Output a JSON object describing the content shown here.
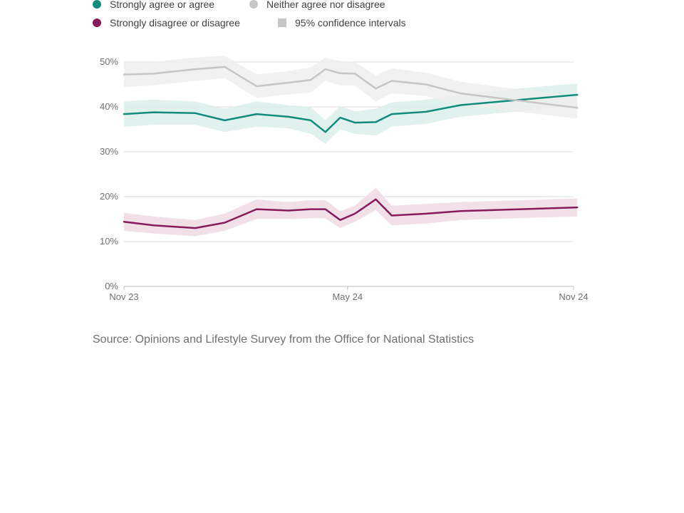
{
  "legend": [
    {
      "label": "Strongly agree or agree",
      "color": "#118c7b",
      "shape": "circle"
    },
    {
      "label": "Neither agree nor disagree",
      "color": "#c6c6c6",
      "shape": "circle"
    },
    {
      "label": "Strongly disagree or disagree",
      "color": "#871a5b",
      "shape": "circle"
    },
    {
      "label": "95% confidence intervals",
      "color": "#c6c6c6",
      "shape": "square"
    }
  ],
  "source": "Source: Opinions and Lifestyle Survey from the Office for National Statistics",
  "chart_data": {
    "type": "line",
    "title": "",
    "xlabel": "",
    "ylabel": "",
    "ylim": [
      0,
      50
    ],
    "x_ticks": [
      {
        "label": "Nov 23",
        "date": "2023-11-01"
      },
      {
        "label": "May 24",
        "date": "2024-05-01"
      },
      {
        "label": "Nov 24",
        "date": "2024-11-01"
      }
    ],
    "y_ticks": [
      {
        "label": "0%",
        "value": 0
      },
      {
        "label": "10%",
        "value": 10
      },
      {
        "label": "20%",
        "value": 20
      },
      {
        "label": "30%",
        "value": 30
      },
      {
        "label": "40%",
        "value": 40
      },
      {
        "label": "50%",
        "value": 50
      }
    ],
    "grid": true,
    "legend_position": "top-left",
    "x": [
      "2023-11-01",
      "2023-11-25",
      "2023-12-29",
      "2024-01-22",
      "2024-02-17",
      "2024-03-14",
      "2024-04-01",
      "2024-04-13",
      "2024-04-25",
      "2024-05-07",
      "2024-05-24",
      "2024-06-06",
      "2024-07-04",
      "2024-08-01",
      "2024-11-04"
    ],
    "series": [
      {
        "name": "Strongly agree or agree",
        "color": "#118c7b",
        "band_color": "#dcefeb",
        "values": [
          38.4,
          38.8,
          38.6,
          37.0,
          38.4,
          37.8,
          37.0,
          34.4,
          37.6,
          36.5,
          36.6,
          38.4,
          38.9,
          40.4,
          42.7
        ],
        "lower": [
          35.6,
          36.0,
          36.0,
          34.4,
          35.6,
          35.2,
          34.0,
          31.8,
          35.0,
          34.0,
          33.6,
          35.6,
          36.2,
          37.8,
          40.2
        ],
        "upper": [
          41.2,
          41.6,
          41.2,
          39.6,
          41.2,
          40.4,
          40.0,
          37.0,
          40.2,
          39.0,
          39.6,
          41.0,
          41.6,
          43.0,
          45.2
        ]
      },
      {
        "name": "Neither agree nor disagree",
        "color": "#c6c6c6",
        "band_color": "#efefef",
        "values": [
          47.2,
          47.4,
          48.4,
          48.9,
          44.6,
          45.4,
          46.0,
          48.4,
          47.5,
          47.4,
          44.1,
          45.8,
          45.0,
          43.0,
          39.8
        ],
        "lower": [
          44.4,
          44.8,
          45.8,
          46.4,
          42.0,
          42.8,
          43.2,
          45.8,
          44.8,
          44.8,
          41.2,
          43.0,
          42.4,
          40.4,
          37.4
        ],
        "upper": [
          50.0,
          50.0,
          51.0,
          51.4,
          47.2,
          48.0,
          48.8,
          51.0,
          50.2,
          50.0,
          47.0,
          48.6,
          47.6,
          45.6,
          42.2
        ]
      },
      {
        "name": "Strongly disagree or disagree",
        "color": "#871a5b",
        "band_color": "#efdbe4",
        "values": [
          14.4,
          13.6,
          13.0,
          14.2,
          17.2,
          16.9,
          17.2,
          17.2,
          14.8,
          16.2,
          19.4,
          15.8,
          16.2,
          16.8,
          17.6
        ],
        "lower": [
          12.4,
          11.8,
          11.2,
          12.4,
          15.0,
          15.0,
          15.2,
          15.2,
          13.0,
          14.4,
          17.0,
          13.6,
          14.0,
          14.8,
          15.6
        ],
        "upper": [
          16.4,
          15.6,
          14.8,
          16.2,
          19.4,
          18.8,
          19.2,
          19.2,
          16.8,
          18.0,
          22.0,
          18.0,
          18.4,
          18.8,
          19.6
        ]
      }
    ]
  }
}
